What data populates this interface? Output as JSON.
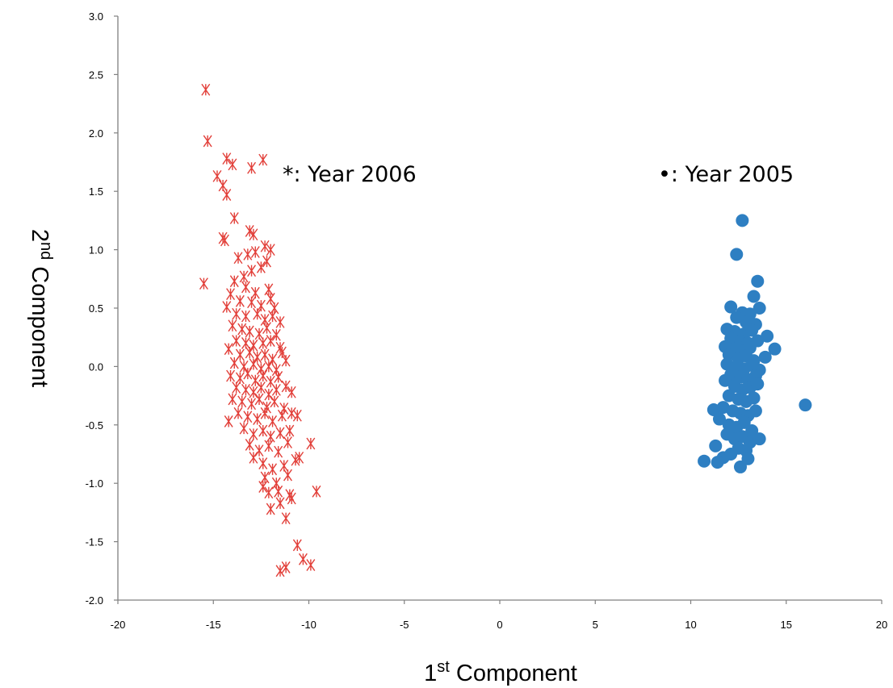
{
  "chart_data": {
    "type": "scatter",
    "title": "",
    "xlabel": {
      "base": "1",
      "sup": "st",
      "rest": " Component"
    },
    "ylabel": {
      "base": "2",
      "sup": "nd",
      "rest": " Component"
    },
    "xlim": [
      -20,
      20
    ],
    "ylim": [
      -2.0,
      3.0
    ],
    "x_ticks": [
      "-20",
      "-15",
      "-10",
      "-5",
      "0",
      "5",
      "10",
      "15",
      "20"
    ],
    "y_ticks": [
      "-2.0",
      "-1.5",
      "-1.0",
      "-0.5",
      "0.0",
      "0.5",
      "1.0",
      "1.5",
      "2.0",
      "2.5",
      "3.0"
    ],
    "grid": false,
    "annotations": [
      {
        "text": "*: Year 2006",
        "x": -11.2,
        "y": 1.62
      },
      {
        "text": "•: Year 2005",
        "x": 8.3,
        "y": 1.62
      }
    ],
    "series": [
      {
        "marker": "asterisk",
        "color": "#e2403a",
        "points": [
          [
            -15.4,
            2.37
          ],
          [
            -15.3,
            1.93
          ],
          [
            -14.3,
            1.78
          ],
          [
            -14.8,
            1.63
          ],
          [
            -14.0,
            1.73
          ],
          [
            -13.0,
            1.7
          ],
          [
            -12.4,
            1.77
          ],
          [
            -14.5,
            1.55
          ],
          [
            -14.3,
            1.47
          ],
          [
            -13.9,
            1.27
          ],
          [
            -15.5,
            0.71
          ],
          [
            -14.5,
            1.1
          ],
          [
            -14.4,
            1.08
          ],
          [
            -13.1,
            1.16
          ],
          [
            -12.9,
            1.13
          ],
          [
            -13.7,
            0.93
          ],
          [
            -13.2,
            0.96
          ],
          [
            -12.8,
            0.98
          ],
          [
            -12.3,
            1.03
          ],
          [
            -12.0,
            1.0
          ],
          [
            -12.2,
            0.9
          ],
          [
            -12.5,
            0.85
          ],
          [
            -13.0,
            0.82
          ],
          [
            -13.4,
            0.77
          ],
          [
            -13.9,
            0.73
          ],
          [
            -13.3,
            0.68
          ],
          [
            -12.8,
            0.63
          ],
          [
            -12.1,
            0.66
          ],
          [
            -14.1,
            0.62
          ],
          [
            -13.6,
            0.56
          ],
          [
            -13.0,
            0.55
          ],
          [
            -12.5,
            0.52
          ],
          [
            -12.0,
            0.58
          ],
          [
            -11.8,
            0.5
          ],
          [
            -14.3,
            0.51
          ],
          [
            -13.8,
            0.45
          ],
          [
            -13.3,
            0.43
          ],
          [
            -12.7,
            0.45
          ],
          [
            -12.3,
            0.4
          ],
          [
            -11.9,
            0.43
          ],
          [
            -11.5,
            0.38
          ],
          [
            -14.0,
            0.35
          ],
          [
            -13.5,
            0.32
          ],
          [
            -13.1,
            0.3
          ],
          [
            -12.6,
            0.28
          ],
          [
            -12.2,
            0.33
          ],
          [
            -11.7,
            0.27
          ],
          [
            -13.8,
            0.22
          ],
          [
            -13.3,
            0.2
          ],
          [
            -12.9,
            0.18
          ],
          [
            -12.4,
            0.2
          ],
          [
            -12.0,
            0.22
          ],
          [
            -11.5,
            0.16
          ],
          [
            -14.2,
            0.15
          ],
          [
            -13.6,
            0.1
          ],
          [
            -13.1,
            0.12
          ],
          [
            -12.7,
            0.08
          ],
          [
            -12.3,
            0.1
          ],
          [
            -11.9,
            0.06
          ],
          [
            -11.4,
            0.12
          ],
          [
            -13.9,
            0.03
          ],
          [
            -13.4,
            0.0
          ],
          [
            -12.9,
            0.02
          ],
          [
            -12.5,
            -0.02
          ],
          [
            -12.1,
            0.0
          ],
          [
            -11.7,
            -0.03
          ],
          [
            -11.2,
            0.05
          ],
          [
            -14.1,
            -0.08
          ],
          [
            -13.6,
            -0.1
          ],
          [
            -13.2,
            -0.06
          ],
          [
            -12.8,
            -0.12
          ],
          [
            -12.4,
            -0.08
          ],
          [
            -12.0,
            -0.13
          ],
          [
            -11.6,
            -0.09
          ],
          [
            -13.8,
            -0.18
          ],
          [
            -13.3,
            -0.2
          ],
          [
            -12.9,
            -0.22
          ],
          [
            -12.5,
            -0.18
          ],
          [
            -12.1,
            -0.24
          ],
          [
            -11.7,
            -0.2
          ],
          [
            -11.2,
            -0.17
          ],
          [
            -10.9,
            -0.22
          ],
          [
            -14.0,
            -0.28
          ],
          [
            -13.5,
            -0.3
          ],
          [
            -13.0,
            -0.32
          ],
          [
            -12.6,
            -0.28
          ],
          [
            -12.2,
            -0.35
          ],
          [
            -11.8,
            -0.3
          ],
          [
            -11.3,
            -0.36
          ],
          [
            -13.7,
            -0.4
          ],
          [
            -13.2,
            -0.43
          ],
          [
            -12.7,
            -0.45
          ],
          [
            -12.3,
            -0.4
          ],
          [
            -11.9,
            -0.47
          ],
          [
            -11.4,
            -0.42
          ],
          [
            -10.9,
            -0.4
          ],
          [
            -10.6,
            -0.42
          ],
          [
            -14.2,
            -0.47
          ],
          [
            -13.4,
            -0.53
          ],
          [
            -12.9,
            -0.58
          ],
          [
            -12.4,
            -0.55
          ],
          [
            -12.0,
            -0.6
          ],
          [
            -11.5,
            -0.57
          ],
          [
            -11.0,
            -0.55
          ],
          [
            -13.1,
            -0.67
          ],
          [
            -12.6,
            -0.72
          ],
          [
            -12.1,
            -0.68
          ],
          [
            -11.6,
            -0.73
          ],
          [
            -11.1,
            -0.65
          ],
          [
            -9.9,
            -0.66
          ],
          [
            -12.9,
            -0.78
          ],
          [
            -12.4,
            -0.83
          ],
          [
            -11.9,
            -0.88
          ],
          [
            -11.3,
            -0.85
          ],
          [
            -10.7,
            -0.8
          ],
          [
            -10.5,
            -0.78
          ],
          [
            -12.3,
            -0.95
          ],
          [
            -11.7,
            -1.0
          ],
          [
            -11.1,
            -0.93
          ],
          [
            -12.4,
            -1.03
          ],
          [
            -12.1,
            -1.08
          ],
          [
            -11.6,
            -1.07
          ],
          [
            -11.0,
            -1.1
          ],
          [
            -9.6,
            -1.07
          ],
          [
            -12.0,
            -1.22
          ],
          [
            -11.5,
            -1.17
          ],
          [
            -10.9,
            -1.13
          ],
          [
            -11.2,
            -1.3
          ],
          [
            -10.6,
            -1.53
          ],
          [
            -10.3,
            -1.65
          ],
          [
            -9.9,
            -1.7
          ],
          [
            -11.5,
            -1.75
          ],
          [
            -11.2,
            -1.72
          ]
        ]
      },
      {
        "marker": "circle",
        "color": "#2e7fc2",
        "points": [
          [
            12.7,
            1.25
          ],
          [
            12.4,
            0.96
          ],
          [
            13.5,
            0.73
          ],
          [
            13.3,
            0.6
          ],
          [
            12.1,
            0.51
          ],
          [
            13.6,
            0.5
          ],
          [
            12.7,
            0.46
          ],
          [
            13.1,
            0.45
          ],
          [
            12.4,
            0.42
          ],
          [
            12.9,
            0.38
          ],
          [
            13.4,
            0.36
          ],
          [
            11.9,
            0.32
          ],
          [
            12.3,
            0.3
          ],
          [
            12.8,
            0.28
          ],
          [
            13.2,
            0.31
          ],
          [
            14.0,
            0.26
          ],
          [
            12.1,
            0.24
          ],
          [
            12.6,
            0.22
          ],
          [
            13.0,
            0.2
          ],
          [
            13.5,
            0.22
          ],
          [
            11.8,
            0.17
          ],
          [
            12.3,
            0.15
          ],
          [
            12.7,
            0.13
          ],
          [
            13.1,
            0.16
          ],
          [
            14.4,
            0.15
          ],
          [
            12.0,
            0.1
          ],
          [
            12.5,
            0.07
          ],
          [
            12.9,
            0.09
          ],
          [
            13.3,
            0.05
          ],
          [
            13.9,
            0.08
          ],
          [
            11.9,
            0.02
          ],
          [
            12.4,
            0.0
          ],
          [
            12.8,
            -0.02
          ],
          [
            13.2,
            0.01
          ],
          [
            13.6,
            -0.03
          ],
          [
            12.1,
            -0.07
          ],
          [
            12.6,
            -0.09
          ],
          [
            13.0,
            -0.11
          ],
          [
            13.4,
            -0.08
          ],
          [
            11.8,
            -0.12
          ],
          [
            12.3,
            -0.17
          ],
          [
            12.7,
            -0.2
          ],
          [
            13.1,
            -0.18
          ],
          [
            13.5,
            -0.15
          ],
          [
            12.0,
            -0.25
          ],
          [
            12.5,
            -0.28
          ],
          [
            12.9,
            -0.3
          ],
          [
            13.3,
            -0.27
          ],
          [
            16.0,
            -0.33
          ],
          [
            11.2,
            -0.37
          ],
          [
            11.7,
            -0.35
          ],
          [
            12.2,
            -0.38
          ],
          [
            12.6,
            -0.4
          ],
          [
            13.0,
            -0.42
          ],
          [
            13.4,
            -0.38
          ],
          [
            11.5,
            -0.45
          ],
          [
            12.0,
            -0.5
          ],
          [
            12.4,
            -0.52
          ],
          [
            12.8,
            -0.48
          ],
          [
            13.2,
            -0.55
          ],
          [
            11.9,
            -0.58
          ],
          [
            12.3,
            -0.62
          ],
          [
            12.7,
            -0.6
          ],
          [
            13.1,
            -0.65
          ],
          [
            13.6,
            -0.62
          ],
          [
            11.3,
            -0.68
          ],
          [
            12.5,
            -0.7
          ],
          [
            12.9,
            -0.72
          ],
          [
            11.7,
            -0.78
          ],
          [
            12.1,
            -0.75
          ],
          [
            10.7,
            -0.81
          ],
          [
            11.4,
            -0.82
          ],
          [
            13.0,
            -0.79
          ],
          [
            12.6,
            -0.86
          ]
        ]
      }
    ]
  }
}
